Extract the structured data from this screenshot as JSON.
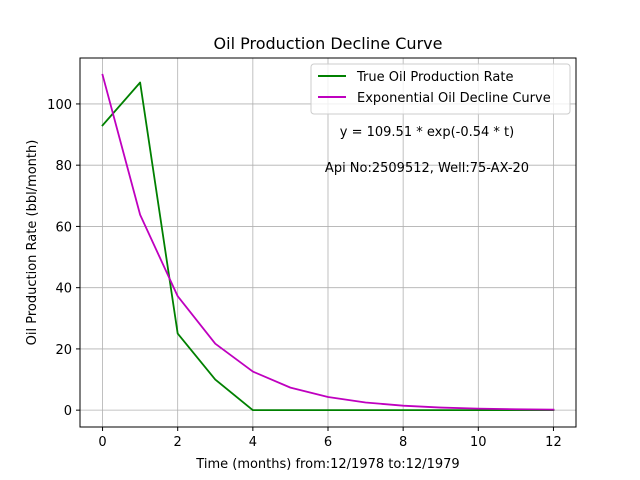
{
  "chart_data": {
    "type": "line",
    "title": "Oil Production Decline Curve",
    "xlabel": "Time (months) from:12/1978 to:12/1979",
    "ylabel": "Oil Production Rate (bbl/month)",
    "xlim": [
      -0.6,
      12.6
    ],
    "ylim": [
      -5.5,
      115
    ],
    "xticks": [
      0,
      2,
      4,
      6,
      8,
      10,
      12
    ],
    "yticks": [
      0,
      20,
      40,
      60,
      80,
      100
    ],
    "grid": true,
    "legend_position": "top-right",
    "series": [
      {
        "name": "True Oil Production Rate",
        "color": "#008000",
        "x": [
          0,
          1,
          2,
          3,
          4,
          5,
          6,
          7,
          8,
          9,
          10,
          11,
          12
        ],
        "y": [
          93,
          107,
          25,
          10,
          0,
          0,
          0,
          0,
          0,
          0,
          0,
          0,
          0
        ]
      },
      {
        "name": "Exponential Oil Decline Curve",
        "color": "#bf00bf",
        "x": [
          0,
          1,
          2,
          3,
          4,
          5,
          6,
          7,
          8,
          9,
          10,
          11,
          12
        ],
        "y": [
          109.51,
          63.8,
          37.2,
          21.7,
          12.6,
          7.36,
          4.29,
          2.5,
          1.46,
          0.85,
          0.5,
          0.29,
          0.17
        ]
      }
    ],
    "annotations": [
      "y = 109.51 * exp(-0.54 * t)",
      "Api No:2509512, Well:75-AX-20"
    ]
  }
}
